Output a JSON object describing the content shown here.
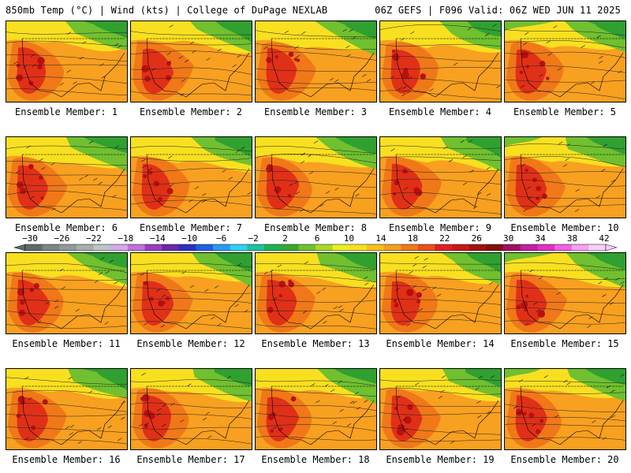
{
  "header": {
    "left": "850mb Temp (°C) | Wind (kts) | College of DuPage NEXLAB",
    "right": "06Z GEFS | F096 Valid: 06Z WED JUN 11 2025"
  },
  "members": [
    "Ensemble Member: 1",
    "Ensemble Member: 2",
    "Ensemble Member: 3",
    "Ensemble Member: 4",
    "Ensemble Member: 5",
    "Ensemble Member: 6",
    "Ensemble Member: 7",
    "Ensemble Member: 8",
    "Ensemble Member: 9",
    "Ensemble Member: 10",
    "Ensemble Member: 11",
    "Ensemble Member: 12",
    "Ensemble Member: 13",
    "Ensemble Member: 14",
    "Ensemble Member: 15",
    "Ensemble Member: 16",
    "Ensemble Member: 17",
    "Ensemble Member: 18",
    "Ensemble Member: 19",
    "Ensemble Member: 20"
  ],
  "colorbar": {
    "labels": [
      "−30",
      "−26",
      "−22",
      "−18",
      "−14",
      "−10",
      "−6",
      "−2",
      "2",
      "6",
      "10",
      "14",
      "18",
      "22",
      "26",
      "30",
      "34",
      "38",
      "42"
    ],
    "colors": [
      "#5f6b6b",
      "#7a8686",
      "#8f9a9a",
      "#a4aeae",
      "#bcc4c4",
      "#d4a8e8",
      "#c070d8",
      "#9a3fc0",
      "#6a2aa8",
      "#3030c0",
      "#2060e0",
      "#2a9af0",
      "#30d0f0",
      "#20c0a0",
      "#20b050",
      "#38a830",
      "#70c030",
      "#a8d828",
      "#e8f020",
      "#f8e020",
      "#f8c018",
      "#f0a020",
      "#f07818",
      "#e85018",
      "#e02020",
      "#c81818",
      "#a01010",
      "#801010",
      "#a01060",
      "#c020a0",
      "#e030c0",
      "#f060e0",
      "#f8a0f0",
      "#f8d0f8"
    ]
  },
  "map_colors": {
    "hot": "#e03018",
    "warm": "#f07818",
    "mild": "#f8a020",
    "cool": "#f8e020",
    "green": "#70c030",
    "dark_green": "#30a030",
    "teal": "#30c0c0"
  }
}
